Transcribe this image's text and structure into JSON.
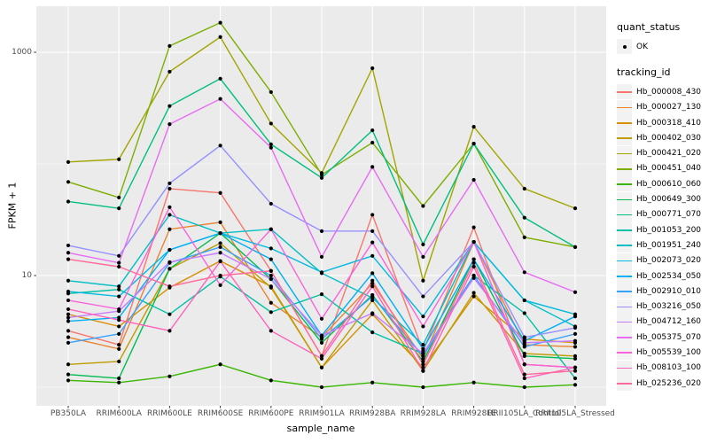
{
  "figure": {
    "y_axis": {
      "label": "FPKM + 1",
      "ticks": [
        {
          "label": "1000",
          "value": 1000
        },
        {
          "label": "10",
          "value": 10
        }
      ]
    },
    "x_axis": {
      "label": "sample_name"
    },
    "legend": {
      "quant_title": "quant_status",
      "quant_items": [
        {
          "label": "OK",
          "marker": "black-point"
        }
      ],
      "tracking_title": "tracking_id"
    },
    "panel_background": "#EBEBEB",
    "grid_color": "#FFFFFF",
    "tick_text_color": "#4D4D4D",
    "point_color": "#000000"
  },
  "chart_data": {
    "type": "line",
    "title": "",
    "xlabel": "sample_name",
    "ylabel": "FPKM + 1",
    "y_scale": "log10",
    "ylim": [
      0.68,
      2600
    ],
    "y_major_gridlines": [
      10,
      1000
    ],
    "y_minor_gridlines": [
      1,
      100
    ],
    "grid": true,
    "legend_position": "right",
    "marker": "point",
    "categories": [
      "PB350LA",
      "RRIM600LA",
      "RRIM600LE",
      "RRIM600SE",
      "RRIM600PE",
      "RRIM901LA",
      "RRIM928BA",
      "RRIM928LA",
      "RRIM928LE",
      "RRII105LA_Control",
      "RRII105LA_Stressed"
    ],
    "series": [
      {
        "name": "Hb_000008_430",
        "color": "#F8766D",
        "values": [
          3.2,
          2.4,
          60,
          55,
          11,
          1.9,
          35,
          2.1,
          27,
          1.6,
          1.5
        ]
      },
      {
        "name": "Hb_000027_130",
        "color": "#EA8331",
        "values": [
          2.8,
          2.2,
          26,
          30,
          5.7,
          2.8,
          8.5,
          1.8,
          20,
          2.4,
          2.3
        ]
      },
      {
        "name": "Hb_000318_410",
        "color": "#D89000",
        "values": [
          4.5,
          3.5,
          7.8,
          13.5,
          8.0,
          1.5,
          4.5,
          1.5,
          6.5,
          2.7,
          2.5
        ]
      },
      {
        "name": "Hb_000402_030",
        "color": "#C09B00",
        "values": [
          1.6,
          1.7,
          11.5,
          19.5,
          7.8,
          1.5,
          6.0,
          1.4,
          7.0,
          2.0,
          1.9
        ]
      },
      {
        "name": "Hb_000421_020",
        "color": "#A3A500",
        "values": [
          104,
          110,
          670,
          1370,
          230,
          83,
          720,
          9.0,
          215,
          60,
          40
        ]
      },
      {
        "name": "Hb_000451_040",
        "color": "#7CAE00",
        "values": [
          69,
          50,
          1140,
          1840,
          440,
          80,
          155,
          42,
          152,
          22,
          18
        ]
      },
      {
        "name": "Hb_000610_060",
        "color": "#39B600",
        "values": [
          1.15,
          1.1,
          1.25,
          1.6,
          1.15,
          1.0,
          1.1,
          1.0,
          1.1,
          1.0,
          1.05
        ]
      },
      {
        "name": "Hb_000649_300",
        "color": "#00BB4E",
        "values": [
          1.3,
          1.2,
          11.5,
          24,
          9.3,
          2.5,
          6.7,
          1.7,
          14,
          1.9,
          1.8
        ]
      },
      {
        "name": "Hb_000771_070",
        "color": "#00BF7D",
        "values": [
          46,
          40,
          330,
          580,
          150,
          75,
          200,
          19,
          152,
          33,
          18
        ]
      },
      {
        "name": "Hb_001053_200",
        "color": "#00C1A3",
        "values": [
          6.9,
          7.5,
          4.5,
          9.8,
          4.7,
          6.8,
          3.1,
          2.0,
          10,
          4.6,
          1.2
        ]
      },
      {
        "name": "Hb_001951_240",
        "color": "#00BFC4",
        "values": [
          9.0,
          8.0,
          35,
          24,
          26,
          10.5,
          6.3,
          2.4,
          20,
          6.0,
          3.5
        ]
      },
      {
        "name": "Hb_002073_020",
        "color": "#00BAE0",
        "values": [
          7.2,
          6.5,
          17,
          24,
          17.5,
          10.7,
          15,
          4.3,
          20,
          6.0,
          4.5
        ]
      },
      {
        "name": "Hb_002534_050",
        "color": "#00B0F6",
        "values": [
          3.9,
          4.2,
          17,
          24,
          14,
          2.9,
          10.5,
          2.2,
          14,
          2.6,
          4.3
        ]
      },
      {
        "name": "Hb_002910_010",
        "color": "#35A2FF",
        "values": [
          2.5,
          3.0,
          13,
          18,
          10,
          2.7,
          6.5,
          1.9,
          10,
          2.3,
          3.0
        ]
      },
      {
        "name": "Hb_003216_050",
        "color": "#9590FF",
        "values": [
          18.6,
          15,
          67,
          146,
          44,
          25,
          25,
          6.5,
          20,
          2.8,
          3.4
        ]
      },
      {
        "name": "Hb_004712_160",
        "color": "#C77CFF",
        "values": [
          4.2,
          4.8,
          13.2,
          16,
          9.3,
          2.9,
          4.6,
          2.0,
          9.5,
          2.5,
          2.6
        ]
      },
      {
        "name": "Hb_005375_070",
        "color": "#E76BF3",
        "values": [
          16,
          13,
          227,
          382,
          140,
          14.7,
          94,
          14.7,
          72,
          10.7,
          7.1
        ]
      },
      {
        "name": "Hb_005539_100",
        "color": "#FA62DB",
        "values": [
          6.0,
          5.0,
          41,
          8.2,
          26,
          4.1,
          19.8,
          3.5,
          20,
          1.6,
          1.5
        ]
      },
      {
        "name": "Hb_008103_100",
        "color": "#FF62BC",
        "values": [
          5.0,
          4.0,
          3.2,
          13.4,
          3.2,
          1.8,
          8.0,
          1.4,
          12,
          1.2,
          1.5
        ]
      },
      {
        "name": "Hb_025236_020",
        "color": "#FF6A98",
        "values": [
          14,
          12,
          8.0,
          10,
          11,
          1.9,
          9.0,
          1.6,
          13,
          1.3,
          1.4
        ]
      }
    ]
  }
}
